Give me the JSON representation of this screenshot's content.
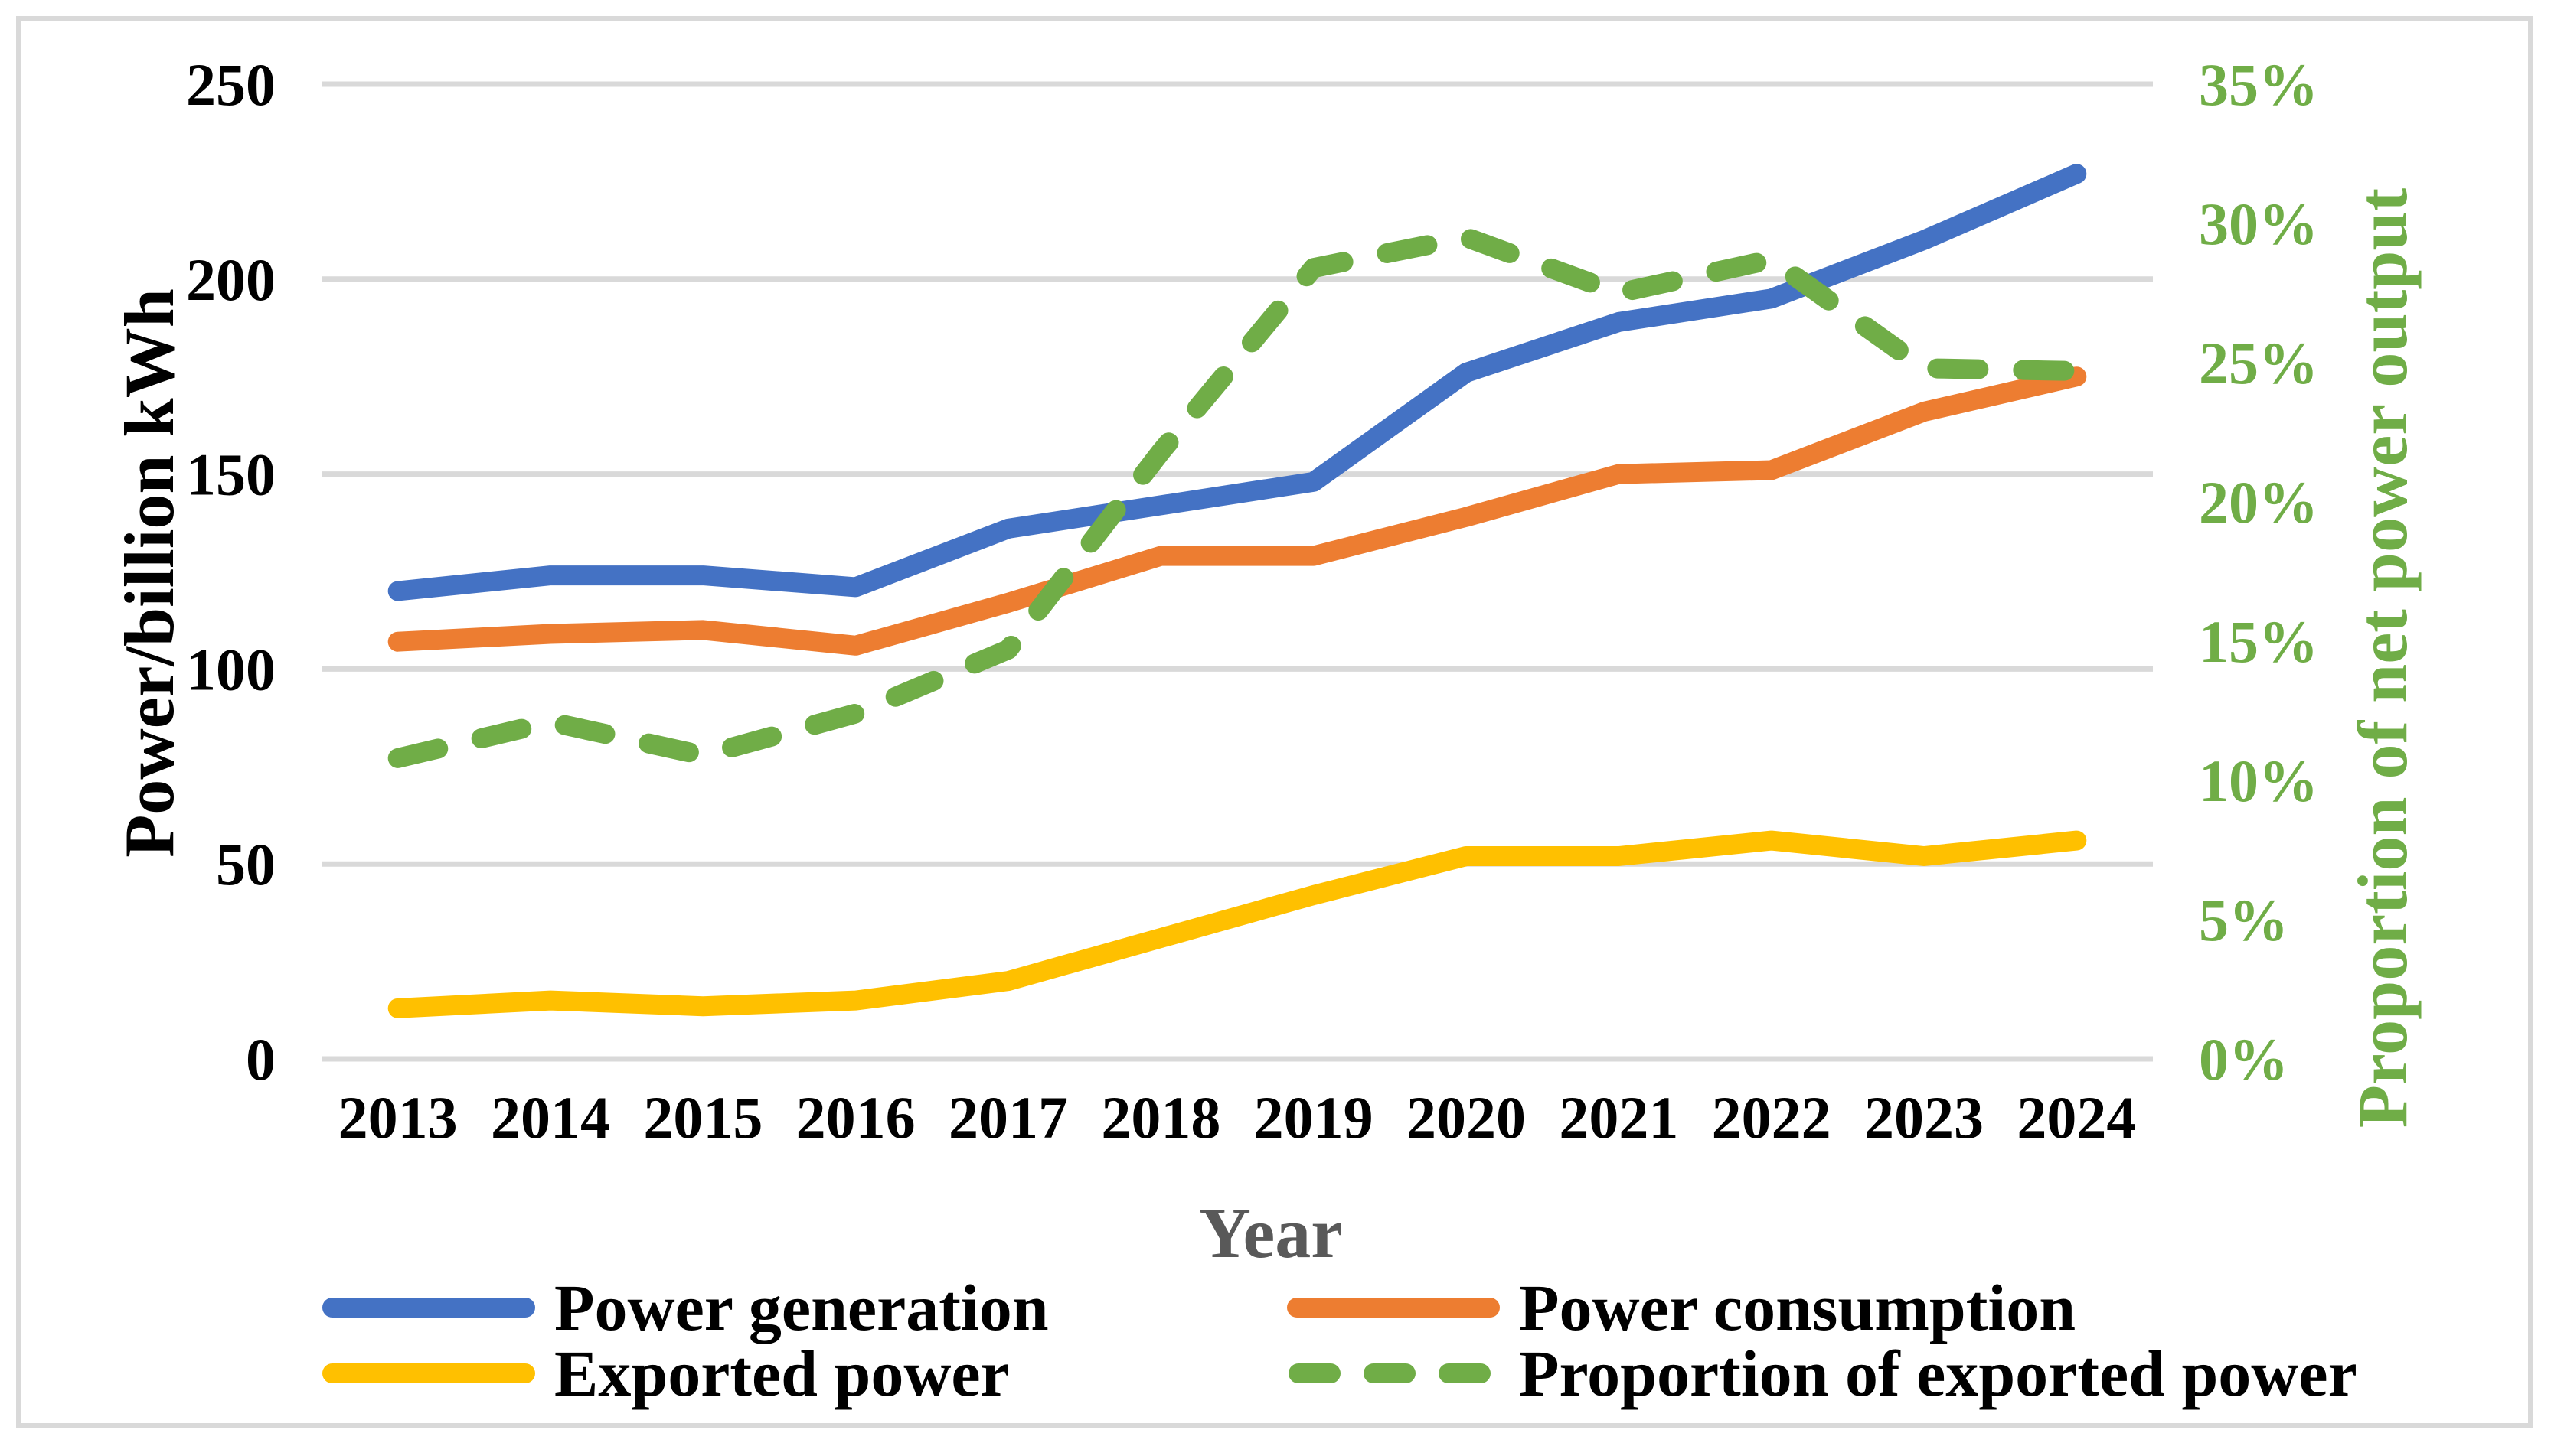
{
  "figure": {
    "background": "#ffffff",
    "border_color": "#d9d9d9"
  },
  "colors": {
    "grid": "#d9d9d9",
    "tick_text": "#000000",
    "x_axis_title": "#595959",
    "right_axis_text": "#70ad47"
  },
  "chart_data": {
    "type": "line",
    "title": "",
    "xlabel": "Year",
    "ylabel_left": "Power/billion kWh",
    "ylabel_right": "Proportion of net power output",
    "grid": true,
    "legend_position": "bottom",
    "categories": [
      "2013",
      "2014",
      "2015",
      "2016",
      "2017",
      "2018",
      "2019",
      "2020",
      "2021",
      "2022",
      "2023",
      "2024"
    ],
    "left_axis": {
      "min": 0,
      "max": 250,
      "step": 50,
      "tick_values": [
        0,
        50,
        100,
        150,
        200,
        250
      ],
      "tick_labels": [
        "0",
        "50",
        "100",
        "150",
        "200",
        "250"
      ]
    },
    "right_axis": {
      "min": 0,
      "max": 35,
      "step": 5,
      "tick_values": [
        0,
        5,
        10,
        15,
        20,
        25,
        30,
        35
      ],
      "tick_labels": [
        "0%",
        "5%",
        "10%",
        "15%",
        "20%",
        "25%",
        "30%",
        "35%"
      ]
    },
    "series": [
      {
        "name": "Power generation",
        "color": "#4472c4",
        "axis": "left",
        "dashed": false,
        "values": [
          120,
          124,
          124,
          121,
          136,
          142,
          148,
          176,
          189,
          195,
          210,
          227
        ]
      },
      {
        "name": "Power consumption",
        "color": "#ed7d31",
        "axis": "left",
        "dashed": false,
        "values": [
          107,
          109,
          110,
          106,
          117,
          129,
          129,
          139,
          150,
          151,
          166,
          175
        ]
      },
      {
        "name": "Exported power",
        "color": "#ffc000",
        "axis": "left",
        "dashed": false,
        "values": [
          13,
          15,
          13.5,
          15,
          20,
          31,
          42,
          52,
          52,
          56,
          52,
          56
        ]
      },
      {
        "name": "Proportion of exported power",
        "color": "#70ad47",
        "axis": "right",
        "dashed": true,
        "values": [
          10.8,
          12.1,
          10.9,
          12.4,
          14.7,
          21.8,
          28.4,
          29.5,
          27.5,
          28.7,
          24.8,
          24.7
        ]
      }
    ]
  }
}
